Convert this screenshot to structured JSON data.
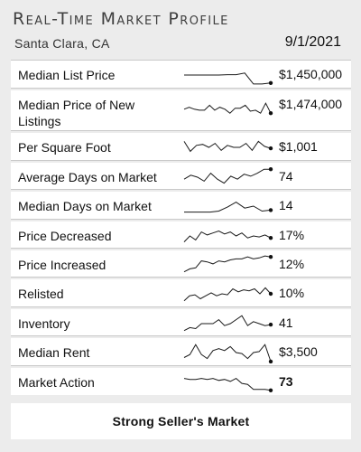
{
  "header": {
    "title": "Real-Time Market Profile",
    "location": "Santa Clara, CA",
    "date": "9/1/2021"
  },
  "rows": [
    {
      "label": "Median List Price",
      "value": "$1,450,000",
      "trend": [
        0.5,
        0.5,
        0.5,
        0.5,
        0.5,
        0.48,
        0.48,
        0.4,
        0.95,
        0.95,
        0.9
      ]
    },
    {
      "label": "Median Price of New Listings",
      "value": "$1,474,000",
      "trend": [
        0.4,
        0.3,
        0.4,
        0.45,
        0.45,
        0.2,
        0.45,
        0.3,
        0.4,
        0.6,
        0.35,
        0.35,
        0.2,
        0.5,
        0.45,
        0.6,
        0.1,
        0.6
      ]
    },
    {
      "label": "Per Square Foot",
      "value": "$1,001",
      "trend": [
        0.2,
        0.7,
        0.4,
        0.35,
        0.5,
        0.3,
        0.65,
        0.4,
        0.5,
        0.5,
        0.3,
        0.65,
        0.2,
        0.45,
        0.55
      ]
    },
    {
      "label": "Average Days on Market",
      "value": "74",
      "trend": [
        0.6,
        0.4,
        0.5,
        0.7,
        0.3,
        0.6,
        0.8,
        0.45,
        0.6,
        0.35,
        0.45,
        0.3,
        0.1,
        0.1
      ]
    },
    {
      "label": "Median Days on Market",
      "value": "14",
      "trend": [
        0.8,
        0.8,
        0.8,
        0.8,
        0.75,
        0.55,
        0.3,
        0.6,
        0.5,
        0.75,
        0.7
      ]
    },
    {
      "label": "Price Decreased",
      "value": "17%",
      "trend": [
        0.8,
        0.5,
        0.7,
        0.3,
        0.45,
        0.35,
        0.25,
        0.4,
        0.3,
        0.5,
        0.35,
        0.6,
        0.5,
        0.55,
        0.45,
        0.6
      ]
    },
    {
      "label": "Price Increased",
      "value": "12%",
      "trend": [
        0.85,
        0.7,
        0.65,
        0.3,
        0.35,
        0.45,
        0.3,
        0.35,
        0.25,
        0.2,
        0.2,
        0.1,
        0.2,
        0.15,
        0.05,
        0.1
      ]
    },
    {
      "label": "Relisted",
      "value": "10%",
      "trend": [
        0.85,
        0.6,
        0.55,
        0.75,
        0.6,
        0.45,
        0.6,
        0.5,
        0.55,
        0.25,
        0.4,
        0.3,
        0.35,
        0.25,
        0.5,
        0.2,
        0.5
      ]
    },
    {
      "label": "Inventory",
      "value": "41",
      "trend": [
        0.85,
        0.7,
        0.75,
        0.5,
        0.5,
        0.5,
        0.3,
        0.6,
        0.5,
        0.3,
        0.1,
        0.6,
        0.4,
        0.5,
        0.6,
        0.55
      ]
    },
    {
      "label": "Median Rent",
      "value": "$3,500",
      "trend": [
        0.75,
        0.6,
        0.1,
        0.6,
        0.8,
        0.4,
        0.3,
        0.4,
        0.2,
        0.5,
        0.55,
        0.8,
        0.5,
        0.45,
        0.1,
        0.95
      ]
    },
    {
      "label": "Market Action",
      "value": "73",
      "trend": [
        0.3,
        0.35,
        0.35,
        0.3,
        0.35,
        0.3,
        0.4,
        0.35,
        0.45,
        0.3,
        0.55,
        0.6,
        0.85,
        0.85,
        0.85,
        0.9
      ]
    }
  ],
  "footer": {
    "text": "Strong Seller's Market"
  },
  "colors": {
    "line": "#1a1a1a",
    "marker": "#111111",
    "panel": "#ffffff",
    "background": "#ececec"
  }
}
